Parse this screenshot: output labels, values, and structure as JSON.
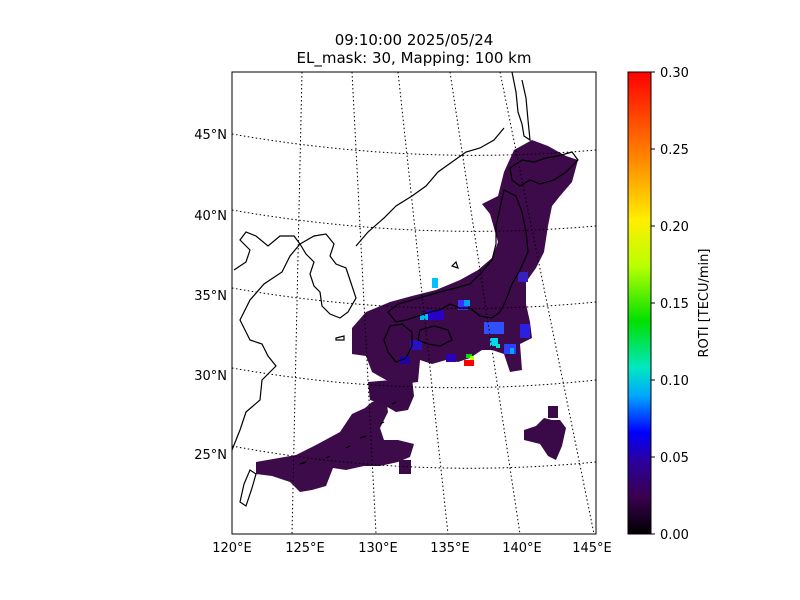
{
  "title": {
    "line1": "09:10:00 2025/05/24",
    "line2": "EL_mask: 30, Mapping: 100 km"
  },
  "map": {
    "projection": "conic",
    "lon_range": [
      120,
      145
    ],
    "lat_range": [
      20,
      49
    ],
    "lat_tick_labels": [
      "25°N",
      "30°N",
      "35°N",
      "40°N",
      "45°N"
    ],
    "lon_tick_labels": [
      "120°E",
      "125°E",
      "130°E",
      "135°E",
      "140°E",
      "145°E"
    ],
    "graticule": "dotted",
    "coastline_color": "#000000"
  },
  "colorbar": {
    "label": "ROTI [TECU/min]",
    "min": 0.0,
    "max": 0.3,
    "tick_labels": [
      "0.00",
      "0.05",
      "0.10",
      "0.15",
      "0.20",
      "0.25",
      "0.30"
    ],
    "colormap": "nipy_spectral-like",
    "colors": [
      "#000000",
      "#3a0050",
      "#2a00a0",
      "#0000ff",
      "#00a8ff",
      "#00e8c0",
      "#00e000",
      "#b8ff00",
      "#ffee00",
      "#ff9000",
      "#ff0000"
    ]
  },
  "roti_field": {
    "background_value": 0.04,
    "background_color": "#3d0a4a",
    "regions": [
      "Japan",
      "Ryukyu Islands",
      "Taiwan",
      "Ogasawara"
    ],
    "hotspots": [
      {
        "lon": 134.2,
        "lat": 36.0,
        "value": 0.1
      },
      {
        "lon": 136.3,
        "lat": 31.0,
        "value": 0.3
      },
      {
        "lon": 136.5,
        "lat": 31.2,
        "value": 0.15
      },
      {
        "lon": 138.6,
        "lat": 32.7,
        "value": 0.1
      },
      {
        "lon": 139.5,
        "lat": 32.1,
        "value": 0.08
      },
      {
        "lon": 133.6,
        "lat": 33.8,
        "value": 0.1
      }
    ]
  }
}
